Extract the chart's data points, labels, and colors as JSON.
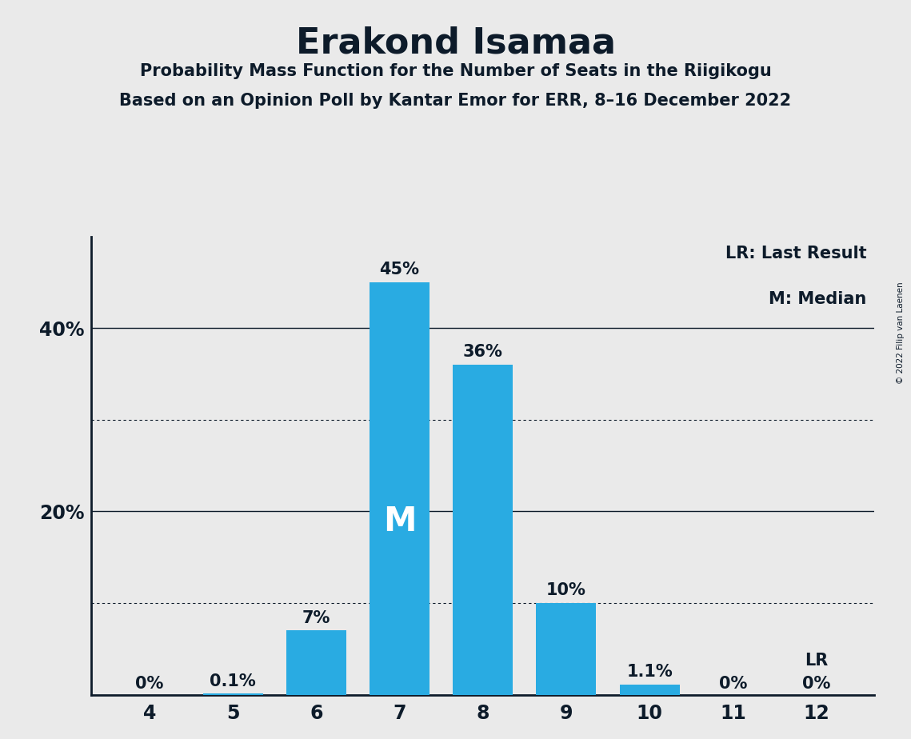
{
  "title": "Erakond Isamaa",
  "subtitle1": "Probability Mass Function for the Number of Seats in the Riigikogu",
  "subtitle2": "Based on an Opinion Poll by Kantar Emor for ERR, 8–16 December 2022",
  "copyright": "© 2022 Filip van Laenen",
  "seats": [
    4,
    5,
    6,
    7,
    8,
    9,
    10,
    11,
    12
  ],
  "probabilities": [
    0.0,
    0.001,
    0.07,
    0.45,
    0.36,
    0.1,
    0.011,
    0.0,
    0.0
  ],
  "bar_labels": [
    "0%",
    "0.1%",
    "7%",
    "45%",
    "36%",
    "10%",
    "1.1%",
    "0%",
    "0%"
  ],
  "bar_color": "#29ABE2",
  "background_color": "#EAEAEA",
  "text_color": "#0D1B2A",
  "median_seat": 7,
  "lr_seat": 12,
  "legend_lr": "LR: Last Result",
  "legend_m": "M: Median",
  "ylim": [
    0,
    0.5
  ],
  "yticks": [
    0.2,
    0.4
  ],
  "ytick_labels": [
    "20%",
    "40%"
  ],
  "dotted_lines": [
    0.1,
    0.3
  ],
  "solid_lines": [
    0.2,
    0.4
  ]
}
